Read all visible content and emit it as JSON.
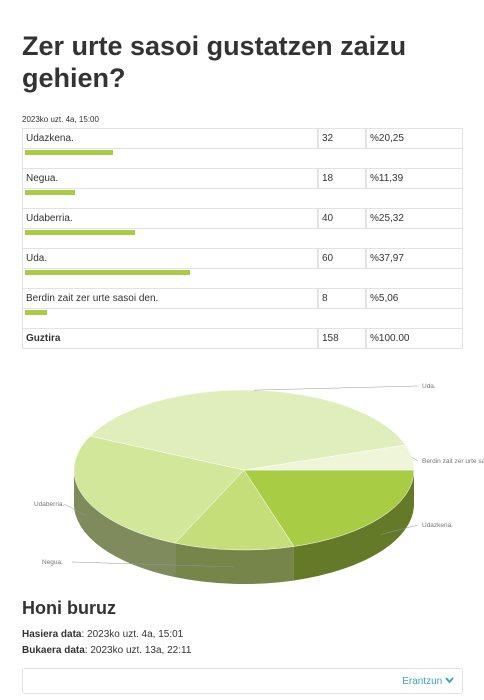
{
  "title": "Zer urte sasoi gustatzen zaizu gehien?",
  "date": "2023ko uzt. 4a, 15:00",
  "chart_data": {
    "type": "pie",
    "categories": [
      "Udazkena.",
      "Negua.",
      "Udaberria.",
      "Uda.",
      "Berdin zait zer urte sasoi den."
    ],
    "values": [
      32,
      18,
      40,
      60,
      8
    ],
    "colors": [
      "#a9cc45",
      "#c5de7a",
      "#d3e79a",
      "#e0eebb",
      "#eef5d8"
    ]
  },
  "table": {
    "rows": [
      {
        "percent": 20.25,
        "percent_label": "%20,25"
      },
      {
        "percent": 11.39,
        "percent_label": "%11,39"
      },
      {
        "percent": 25.32,
        "percent_label": "%25,32"
      },
      {
        "percent": 37.97,
        "percent_label": "%37,97"
      },
      {
        "percent": 5.06,
        "percent_label": "%5,06"
      }
    ],
    "bar_color": "#a9cc45",
    "total": {
      "label": "Guztira",
      "count": 158,
      "percent": 100,
      "percent_label": "%100.00"
    }
  },
  "about": {
    "title": "Honi buruz",
    "start_label": "Hasiera data",
    "start": "2023ko uzt. 4a, 15:01",
    "end_label": "Bukaera data",
    "end": "2023ko uzt. 13a, 22:11"
  },
  "button": "Erantzun"
}
